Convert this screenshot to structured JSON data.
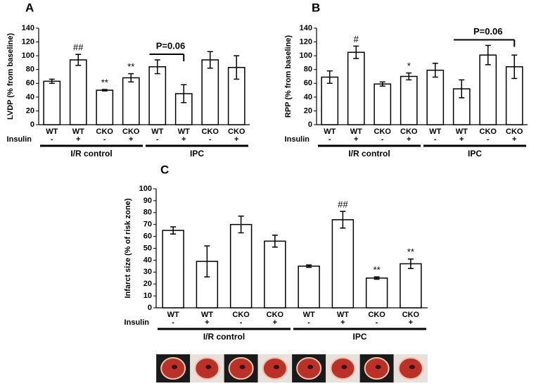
{
  "chart_data": [
    {
      "type": "bar",
      "panel": "A",
      "ylabel": "LVDP (% from baseline)",
      "categories": [
        "WT",
        "WT",
        "CKO",
        "CKO",
        "WT",
        "WT",
        "CKO",
        "CKO"
      ],
      "row_label": "Insulin",
      "insulin": [
        "-",
        "+",
        "-",
        "+",
        "-",
        "+",
        "-",
        "+"
      ],
      "values": [
        63,
        94,
        50,
        68,
        84,
        45,
        94,
        83
      ],
      "errors": [
        3,
        8,
        1,
        6,
        10,
        13,
        12,
        17
      ],
      "annotations": [
        null,
        "##",
        "**",
        "**",
        null,
        null,
        null,
        null
      ],
      "bracket": {
        "label": "P=0.06",
        "start": 4,
        "end": 5
      },
      "groups": [
        {
          "label": "I/R control",
          "size": 4
        },
        {
          "label": "IPC",
          "size": 4
        }
      ],
      "ylim": [
        0,
        140
      ],
      "yticks": [
        0,
        20,
        40,
        60,
        80,
        100,
        120,
        140
      ],
      "color": "#ffffff"
    },
    {
      "type": "bar",
      "panel": "B",
      "ylabel": "RPP (% from baseline)",
      "categories": [
        "WT",
        "WT",
        "CKO",
        "CKO",
        "WT",
        "WT",
        "CKO",
        "CKO"
      ],
      "row_label": "Insulin",
      "insulin": [
        "-",
        "+",
        "-",
        "+",
        "-",
        "+",
        "-",
        "+"
      ],
      "values": [
        69,
        105,
        59,
        70,
        79,
        52,
        101,
        84
      ],
      "errors": [
        9,
        9,
        3,
        5,
        10,
        13,
        14,
        17
      ],
      "annotations": [
        null,
        "#",
        null,
        "*",
        null,
        null,
        null,
        null
      ],
      "bracket": {
        "label": "P=0.06",
        "start": 5,
        "end": 7
      },
      "groups": [
        {
          "label": "I/R control",
          "size": 4
        },
        {
          "label": "IPC",
          "size": 4
        }
      ],
      "ylim": [
        0,
        140
      ],
      "yticks": [
        0,
        20,
        40,
        60,
        80,
        100,
        120,
        140
      ],
      "color": "#ffffff"
    },
    {
      "type": "bar",
      "panel": "C",
      "ylabel": "Infarct size (% of risk zone)",
      "categories": [
        "WT",
        "WT",
        "CKO",
        "CKO",
        "WT",
        "WT",
        "CKO",
        "CKO"
      ],
      "row_label": "Insulin",
      "insulin": [
        "-",
        "+",
        "-",
        "+",
        "-",
        "+",
        "-",
        "+"
      ],
      "values": [
        65,
        39,
        70,
        56,
        35,
        74,
        25,
        37
      ],
      "errors": [
        3,
        13,
        7,
        5,
        1,
        7,
        1,
        4
      ],
      "annotations": [
        null,
        null,
        null,
        null,
        null,
        "##",
        "**",
        "**"
      ],
      "groups": [
        {
          "label": "I/R control",
          "size": 4
        },
        {
          "label": "IPC",
          "size": 4
        }
      ],
      "ylim": [
        0,
        100
      ],
      "yticks": [
        0,
        10,
        20,
        30,
        40,
        50,
        60,
        70,
        80,
        90,
        100
      ],
      "color": "#ffffff"
    }
  ]
}
